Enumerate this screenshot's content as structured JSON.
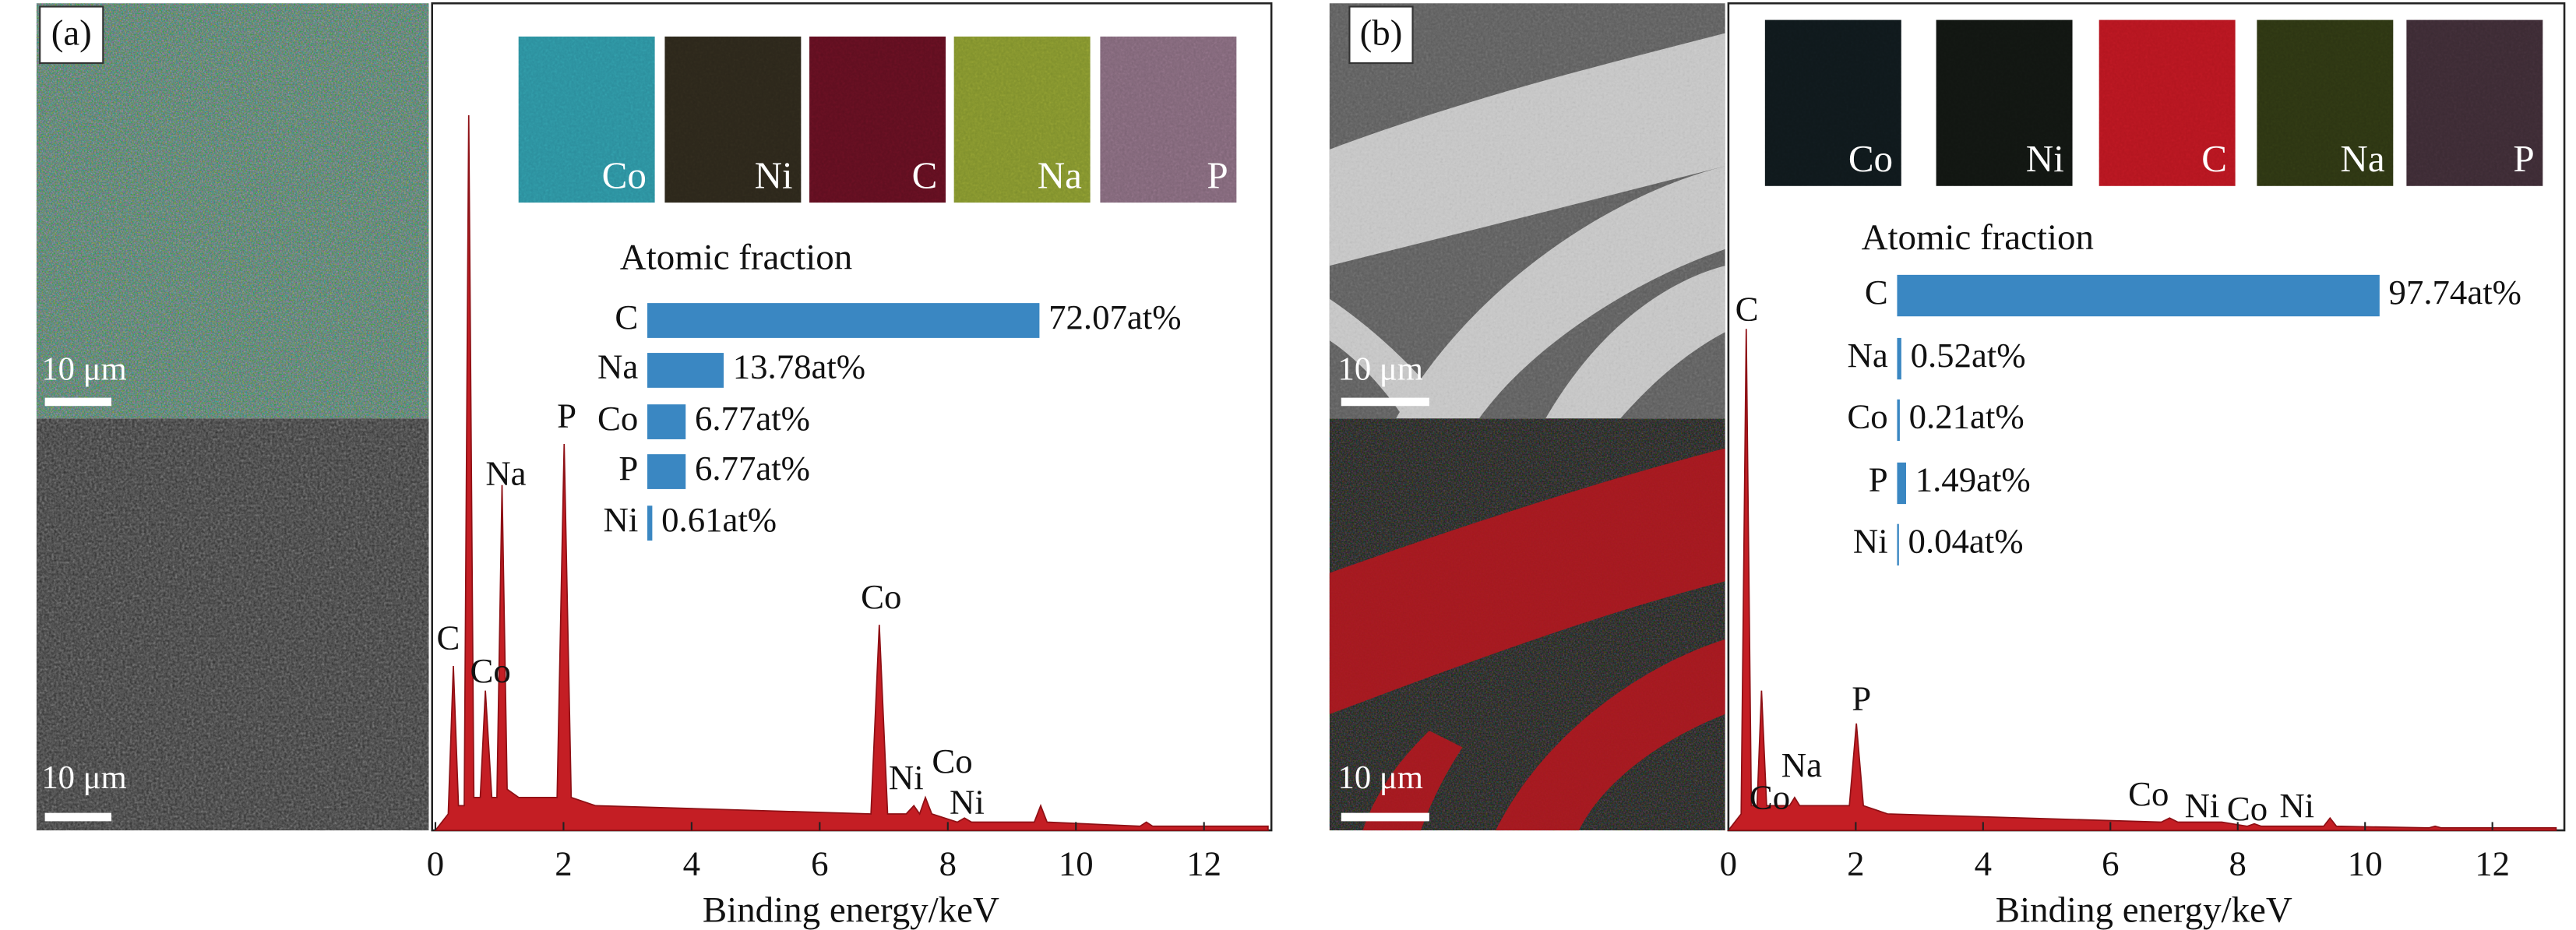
{
  "chart_data": [
    {
      "type": "area",
      "panel_label": "(a)",
      "scale_bar_labels": [
        "10 μm",
        "10 μm"
      ],
      "maps": [
        {
          "label": "Co",
          "color": "#2b8d9c"
        },
        {
          "label": "Ni",
          "color": "#2b261a"
        },
        {
          "label": "C",
          "color": "#5e0e1f"
        },
        {
          "label": "Na",
          "color": "#7f8f2c"
        },
        {
          "label": "P",
          "color": "#7e6476"
        }
      ],
      "fraction": {
        "type": "bar",
        "title": "Atomic fraction",
        "categories": [
          "C",
          "Na",
          "Co",
          "P",
          "Ni"
        ],
        "values": [
          72.07,
          13.78,
          6.77,
          6.77,
          0.61
        ],
        "value_labels": [
          "72.07at%",
          "13.78at%",
          "6.77at%",
          "6.77at%",
          "0.61at%"
        ],
        "color": "#3a87c2",
        "xlim": [
          0,
          100
        ]
      },
      "x": [
        0,
        0.2,
        0.28,
        0.36,
        0.45,
        0.52,
        0.6,
        0.7,
        0.78,
        0.88,
        0.96,
        1.04,
        1.12,
        1.3,
        1.9,
        2.01,
        2.12,
        2.5,
        6.8,
        6.93,
        7.06,
        7.35,
        7.47,
        7.56,
        7.65,
        7.75,
        8.15,
        8.26,
        8.37,
        9.35,
        9.45,
        9.55,
        11.0,
        11.1,
        11.2,
        13
      ],
      "values": [
        0,
        2,
        20,
        3,
        3,
        87,
        4,
        4,
        17,
        4,
        4,
        42,
        5,
        4,
        4,
        47,
        4,
        3,
        2,
        25,
        2,
        2,
        3,
        2,
        4,
        2,
        1,
        1.5,
        1,
        1,
        3,
        1,
        0.5,
        1,
        0.5,
        0.5
      ],
      "color": "#c41e24",
      "xlim": [
        0,
        13
      ],
      "ylim": [
        0,
        100
      ],
      "xticks": [
        0,
        2,
        4,
        6,
        8,
        10,
        12
      ],
      "xlabel": "Binding energy/keV",
      "annotations": [
        {
          "text": "C",
          "x": 0.2,
          "y": 23
        },
        {
          "text": "Co",
          "x": 0.86,
          "y": 19
        },
        {
          "text": "Na",
          "x": 1.1,
          "y": 43
        },
        {
          "text": "P",
          "x": 2.05,
          "y": 50
        },
        {
          "text": "Co",
          "x": 6.96,
          "y": 28
        },
        {
          "text": "Ni",
          "x": 7.35,
          "y": 6
        },
        {
          "text": "Co",
          "x": 8.07,
          "y": 8
        },
        {
          "text": "Ni",
          "x": 8.3,
          "y": 3
        }
      ]
    },
    {
      "type": "area",
      "panel_label": "(b)",
      "scale_bar_labels": [
        "10 μm",
        "10 μm"
      ],
      "maps": [
        {
          "label": "Co",
          "color": "#0f181b"
        },
        {
          "label": "Ni",
          "color": "#111511"
        },
        {
          "label": "C",
          "color": "#b3151f"
        },
        {
          "label": "Na",
          "color": "#2c3412"
        },
        {
          "label": "P",
          "color": "#3b2a33"
        }
      ],
      "fraction": {
        "type": "bar",
        "title": "Atomic fraction",
        "categories": [
          "C",
          "Na",
          "Co",
          "P",
          "Ni"
        ],
        "values": [
          97.74,
          0.52,
          0.21,
          1.49,
          0.04
        ],
        "value_labels": [
          "97.74at%",
          "0.52at%",
          "0.21at%",
          "1.49at%",
          "0.04at%"
        ],
        "color": "#3a87c2",
        "xlim": [
          0,
          100
        ]
      },
      "x": [
        0,
        0.2,
        0.28,
        0.36,
        0.45,
        0.52,
        0.6,
        0.7,
        0.78,
        0.88,
        0.96,
        1.04,
        1.12,
        1.3,
        1.9,
        2.01,
        2.12,
        2.5,
        6.8,
        6.93,
        7.06,
        7.35,
        7.47,
        7.56,
        7.65,
        7.75,
        8.15,
        8.26,
        8.37,
        9.35,
        9.45,
        9.55,
        11.0,
        11.1,
        11.2,
        13
      ],
      "values": [
        0,
        2,
        61,
        3,
        3,
        17,
        3,
        3,
        3,
        3,
        3,
        4,
        3,
        3,
        3,
        13,
        3,
        2,
        1,
        1.5,
        1,
        1,
        1,
        1,
        1,
        1,
        0.5,
        0.8,
        0.5,
        0.5,
        1.5,
        0.5,
        0.3,
        0.5,
        0.3,
        0.3
      ],
      "color": "#c41e24",
      "xlim": [
        0,
        13
      ],
      "ylim": [
        0,
        100
      ],
      "xticks": [
        0,
        2,
        4,
        6,
        8,
        10,
        12
      ],
      "xlabel": "Binding energy/keV",
      "annotations": [
        {
          "text": "C",
          "x": 0.29,
          "y": 63
        },
        {
          "text": "Co",
          "x": 0.65,
          "y": 3.6
        },
        {
          "text": "Na",
          "x": 1.15,
          "y": 7.5
        },
        {
          "text": "P",
          "x": 2.09,
          "y": 15.6
        },
        {
          "text": "Co",
          "x": 6.6,
          "y": 4
        },
        {
          "text": "Ni",
          "x": 7.44,
          "y": 2.6
        },
        {
          "text": "Co",
          "x": 8.15,
          "y": 2.2
        },
        {
          "text": "Ni",
          "x": 8.93,
          "y": 2.6
        }
      ]
    }
  ]
}
